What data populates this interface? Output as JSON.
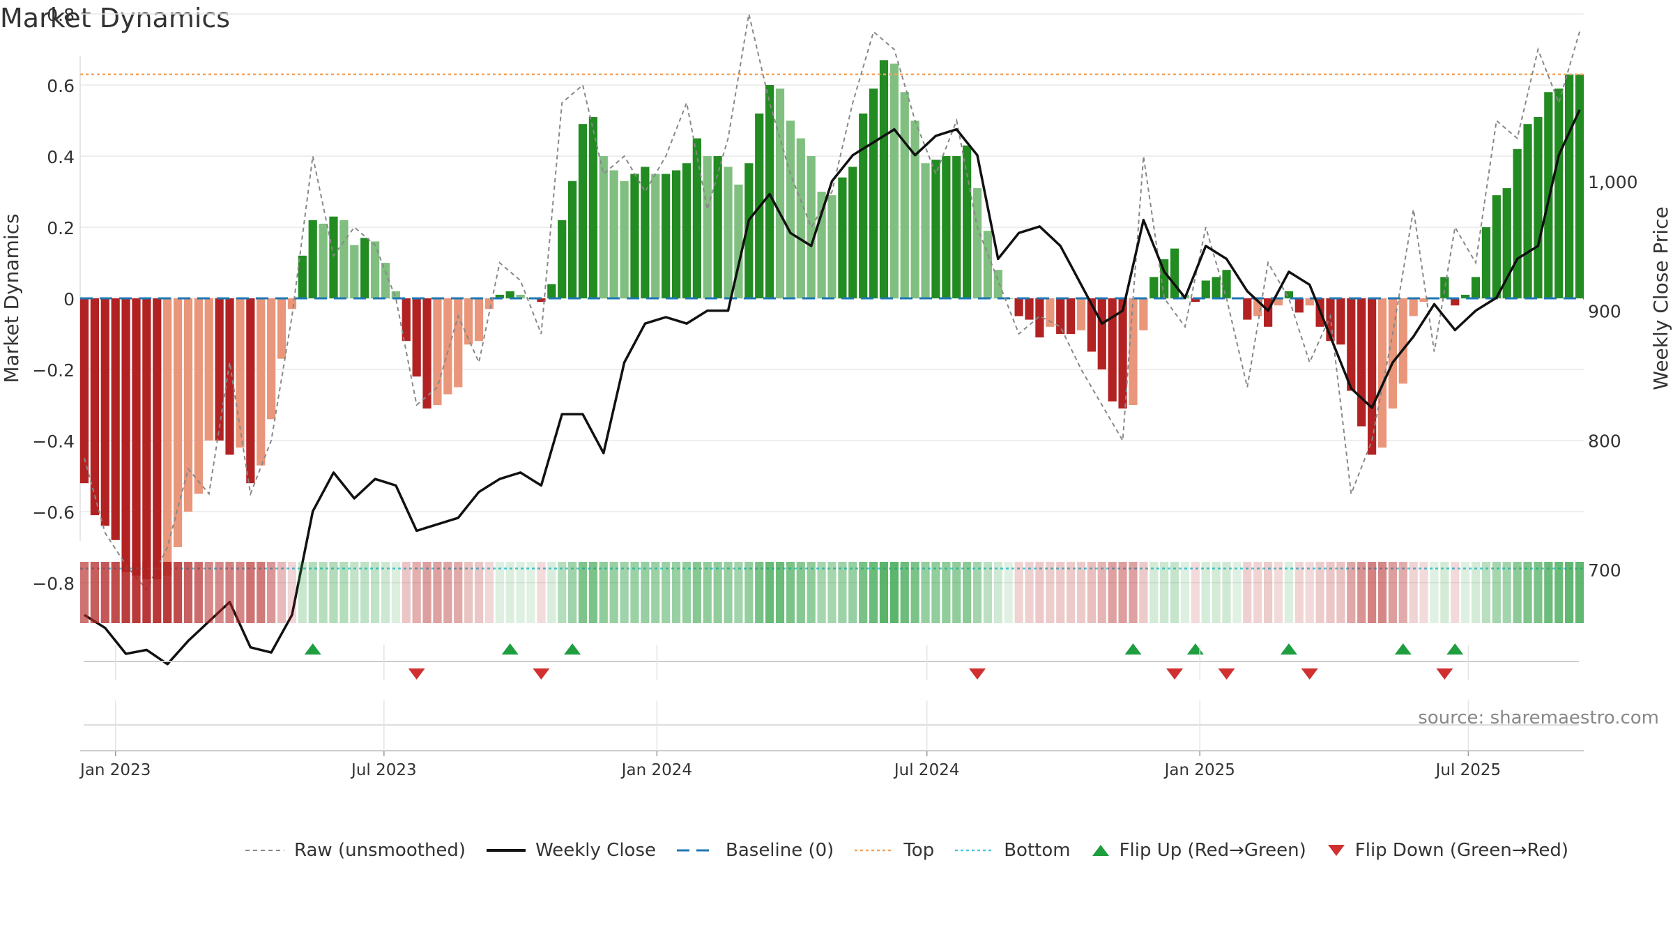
{
  "title": "Market Dynamics",
  "source_note": "source: sharemaestro.com",
  "colors": {
    "strong_red": "#b22222",
    "light_red": "#e9967a",
    "strong_green": "#228b22",
    "light_green": "#80bf80",
    "top_line": "#f4a460",
    "bottom_line": "#48c9e0",
    "baseline": "#1f77b4",
    "raw": "#888888",
    "close": "#111111",
    "flip_up": "#1e9e3e",
    "flip_down": "#d03030"
  },
  "legend": [
    {
      "label": "Raw (unsmoothed)",
      "style": "dashed-gray"
    },
    {
      "label": "Weekly Close",
      "style": "solid-black"
    },
    {
      "label": "Baseline (0)",
      "style": "dash-blue"
    },
    {
      "label": "Top",
      "style": "dotted-orange"
    },
    {
      "label": "Bottom",
      "style": "dotted-cyan"
    },
    {
      "label": "Flip Up (Red→Green)",
      "style": "triangle-up-green"
    },
    {
      "label": "Flip Down (Green→Red)",
      "style": "triangle-down-red"
    }
  ],
  "chart_data": {
    "type": "bar",
    "title": "Market Dynamics",
    "xlabel": "",
    "ylabel": "Market Dynamics",
    "y2label": "Weekly Close Price",
    "ylim": [
      -0.85,
      0.85
    ],
    "y2lim": [
      610,
      1065
    ],
    "yticks": [
      "0.8",
      "0.6",
      "0.4",
      "0.2",
      "0",
      "−0.2",
      "−0.4",
      "−0.6",
      "−0.8"
    ],
    "y2ticks": [
      "1,000",
      "900",
      "800",
      "700"
    ],
    "xticks": [
      "Jan 2023",
      "Jul 2023",
      "Jan 2024",
      "Jul 2024",
      "Jan 2025",
      "Jul 2025"
    ],
    "top_level": 0.63,
    "bottom_level": -0.76,
    "grid": true,
    "legend_position": "bottom",
    "start_date": "2022-12-11",
    "week_count": 145,
    "values_sample": [
      -0.52,
      -0.61,
      -0.64,
      -0.68,
      -0.77,
      -0.78,
      -0.79,
      -0.79,
      -0.78,
      -0.7,
      -0.6,
      -0.55,
      -0.4,
      -0.4,
      -0.44,
      -0.42,
      -0.52,
      -0.47,
      -0.34,
      -0.17,
      -0.03,
      0.12,
      0.22,
      0.21,
      0.23,
      0.22,
      0.15,
      0.17,
      0.16,
      0.1,
      0.02
    ],
    "flip_up_dates": [
      "2023-05-14",
      "2023-09-24",
      "2023-11-05",
      "2024-11-17",
      "2024-12-29",
      "2025-03-02",
      "2025-05-18",
      "2025-06-22"
    ],
    "flip_down_dates": [
      "2023-07-23",
      "2023-10-15",
      "2024-08-04",
      "2024-12-15",
      "2025-01-19",
      "2025-03-16",
      "2025-06-15"
    ]
  }
}
